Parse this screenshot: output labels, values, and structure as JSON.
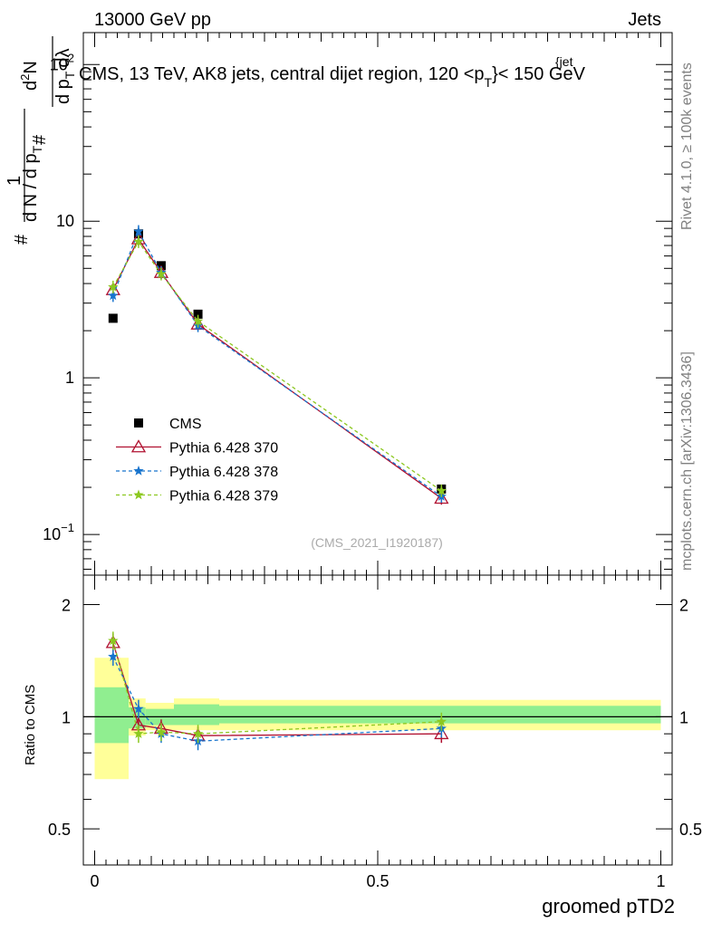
{
  "header": {
    "left": "13000 GeV pp",
    "right": "Jets"
  },
  "side_text": {
    "rivet": "Rivet 4.1.0, ≥ 100k events",
    "mcplots": "mcplots.cern.ch [arXiv:1306.3436]"
  },
  "watermark": "(CMS_2021_I1920187)",
  "chart_data": [
    {
      "type": "scatter",
      "title": "CMS, 13 TeV, AK8 jets, central dijet region, 120 < p_T^{jet} < 150 GeV",
      "title_main": "CMS, 13 TeV, AK8 jets, central dijet region, 120 <p",
      "title_sup": "{jet",
      "title_sub": "T",
      "title_end": "}< 150 GeV",
      "ylabel": "1/(dN/dp_T) d²N/(dp_T dλ)",
      "ylabel_parts": {
        "top_hash": "#",
        "one": "1",
        "den": "d N / d p",
        "den_sub": "T",
        "num_hash": "#",
        "num": "d",
        "num_sup": "2",
        "num_N": "N",
        "den2": "d p",
        "den2_sub": "T",
        "den2_end": "dλ"
      },
      "yscale": "log",
      "ylim": [
        0.055,
        160
      ],
      "xlim": [
        -0.02,
        1.02
      ],
      "yticks": [
        {
          "value": 0.1,
          "base": "10",
          "exp": "−1"
        },
        {
          "value": 1,
          "base": "1",
          "exp": ""
        },
        {
          "value": 10,
          "base": "10",
          "exp": ""
        },
        {
          "value": 100,
          "base": "10",
          "exp": "2"
        }
      ],
      "legend_position": "middle-left",
      "series": [
        {
          "name": "CMS",
          "color": "#000000",
          "marker": "square",
          "style": "none",
          "x": [
            0.0325,
            0.0775,
            0.1175,
            0.1825,
            0.6125
          ],
          "y": [
            2.4,
            8.3,
            5.2,
            2.55,
            0.195
          ]
        },
        {
          "name": "Pythia 6.428 370",
          "color": "#b01030",
          "marker": "triangle",
          "style": "solid",
          "x": [
            0.0325,
            0.0775,
            0.1175,
            0.1825,
            0.6125
          ],
          "y": [
            3.65,
            7.7,
            4.7,
            2.2,
            0.17
          ]
        },
        {
          "name": "Pythia 6.428 378",
          "color": "#1874cd",
          "marker": "star",
          "style": "dashed",
          "x": [
            0.0325,
            0.0775,
            0.1175,
            0.1825,
            0.6125
          ],
          "y": [
            3.35,
            8.6,
            4.7,
            2.15,
            0.175
          ]
        },
        {
          "name": "Pythia 6.428 379",
          "color": "#8cc820",
          "marker": "star",
          "style": "dashed",
          "x": [
            0.0325,
            0.0775,
            0.1175,
            0.1825,
            0.6125
          ],
          "y": [
            3.8,
            7.4,
            4.6,
            2.3,
            0.19
          ]
        }
      ]
    },
    {
      "type": "scatter",
      "title": "",
      "xlabel": "groomed pTD2",
      "ylabel": "Ratio to CMS",
      "yscale": "log",
      "ylim": [
        0.4,
        2.4
      ],
      "xlim": [
        -0.02,
        1.02
      ],
      "yticks": [
        {
          "value": 0.5,
          "label": "0.5"
        },
        {
          "value": 1,
          "label": "1"
        },
        {
          "value": 2,
          "label": "2"
        }
      ],
      "xticks": [
        {
          "value": 0,
          "label": "0"
        },
        {
          "value": 0.5,
          "label": "0.5"
        },
        {
          "value": 1,
          "label": "1"
        }
      ],
      "uncertainty_bands": {
        "edges": [
          0.0,
          0.06,
          0.09,
          0.14,
          0.22,
          1.0
        ],
        "inner": [
          [
            0.85,
            1.2
          ],
          [
            0.93,
            1.06
          ],
          [
            0.95,
            1.05
          ],
          [
            0.95,
            1.08
          ],
          [
            0.96,
            1.07
          ]
        ],
        "outer": [
          [
            0.68,
            1.44
          ],
          [
            0.89,
            1.12
          ],
          [
            0.92,
            1.09
          ],
          [
            0.92,
            1.12
          ],
          [
            0.92,
            1.11
          ]
        ],
        "inner_color": "#90ee90",
        "outer_color": "#ffff99"
      },
      "series": [
        {
          "name": "Pythia 6.428 370",
          "color": "#b01030",
          "marker": "triangle",
          "style": "solid",
          "x": [
            0.0325,
            0.0775,
            0.1175,
            0.1825,
            0.6125
          ],
          "y": [
            1.58,
            0.95,
            0.93,
            0.89,
            0.9
          ]
        },
        {
          "name": "Pythia 6.428 378",
          "color": "#1874cd",
          "marker": "star",
          "style": "dashed",
          "x": [
            0.0325,
            0.0775,
            0.1175,
            0.1825,
            0.6125
          ],
          "y": [
            1.45,
            1.05,
            0.9,
            0.86,
            0.93
          ]
        },
        {
          "name": "Pythia 6.428 379",
          "color": "#8cc820",
          "marker": "star",
          "style": "dashed",
          "x": [
            0.0325,
            0.0775,
            0.1175,
            0.1825,
            0.6125
          ],
          "y": [
            1.6,
            0.9,
            0.91,
            0.9,
            0.97
          ]
        }
      ]
    }
  ]
}
